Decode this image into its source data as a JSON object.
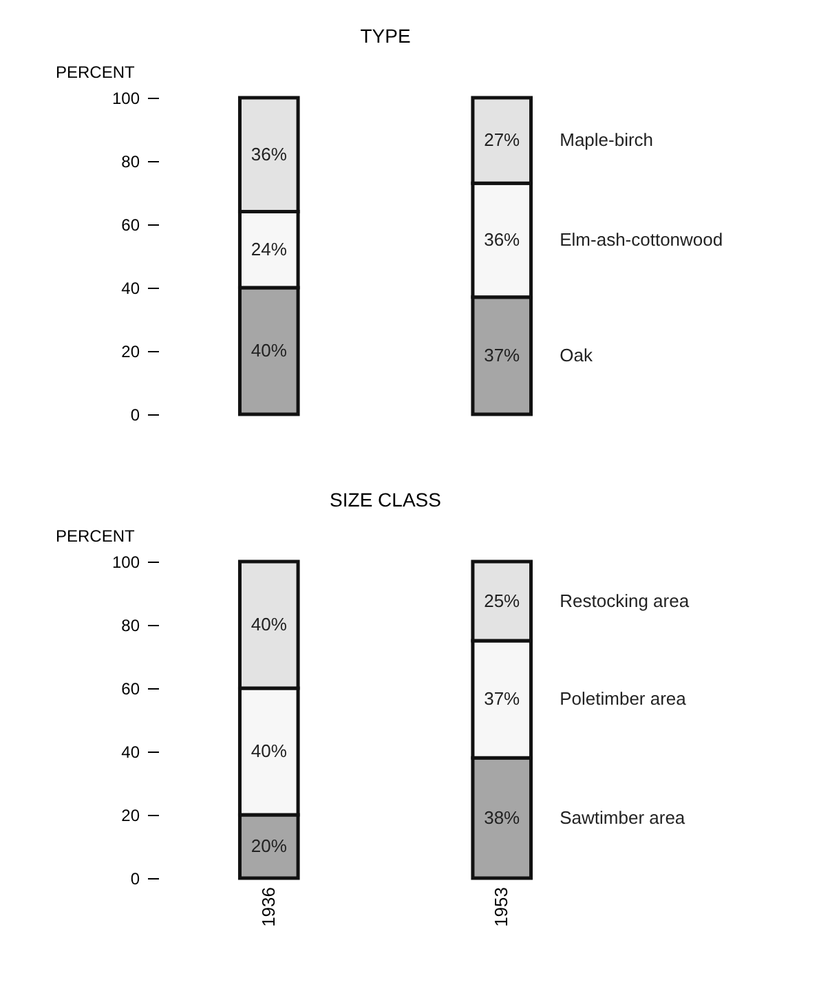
{
  "chart_data": [
    {
      "type": "bar",
      "title": "TYPE",
      "ylabel": "PERCENT",
      "categories": [
        "1936",
        "1953"
      ],
      "stacked": true,
      "ylim": [
        0,
        100
      ],
      "yticks": [
        0,
        20,
        40,
        60,
        80,
        100
      ],
      "grid": false,
      "tick_labels": "y",
      "series": [
        {
          "name": "Oak",
          "color": "#a6a6a6",
          "values": [
            40,
            37
          ],
          "value_labels": [
            "40%",
            "37%"
          ]
        },
        {
          "name": "Elm-ash-cottonwood",
          "color": "#f7f7f7",
          "values": [
            24,
            36
          ],
          "value_labels": [
            "24%",
            "36%"
          ]
        },
        {
          "name": "Maple-birch",
          "color": "#e3e3e3",
          "values": [
            36,
            27
          ],
          "value_labels": [
            "36%",
            "27%"
          ]
        }
      ]
    },
    {
      "type": "bar",
      "title": "SIZE CLASS",
      "ylabel": "PERCENT",
      "categories": [
        "1936",
        "1953"
      ],
      "stacked": true,
      "ylim": [
        0,
        100
      ],
      "yticks": [
        0,
        20,
        40,
        60,
        80,
        100
      ],
      "grid": false,
      "series": [
        {
          "name": "Sawtimber area",
          "color": "#a6a6a6",
          "values": [
            20,
            38
          ],
          "value_labels": [
            "20%",
            "38%"
          ]
        },
        {
          "name": "Poletimber area",
          "color": "#f7f7f7",
          "values": [
            40,
            37
          ],
          "value_labels": [
            "40%",
            "37%"
          ]
        },
        {
          "name": "Restocking area",
          "color": "#e3e3e3",
          "values": [
            40,
            25
          ],
          "value_labels": [
            "40%",
            "25%"
          ]
        }
      ]
    }
  ]
}
